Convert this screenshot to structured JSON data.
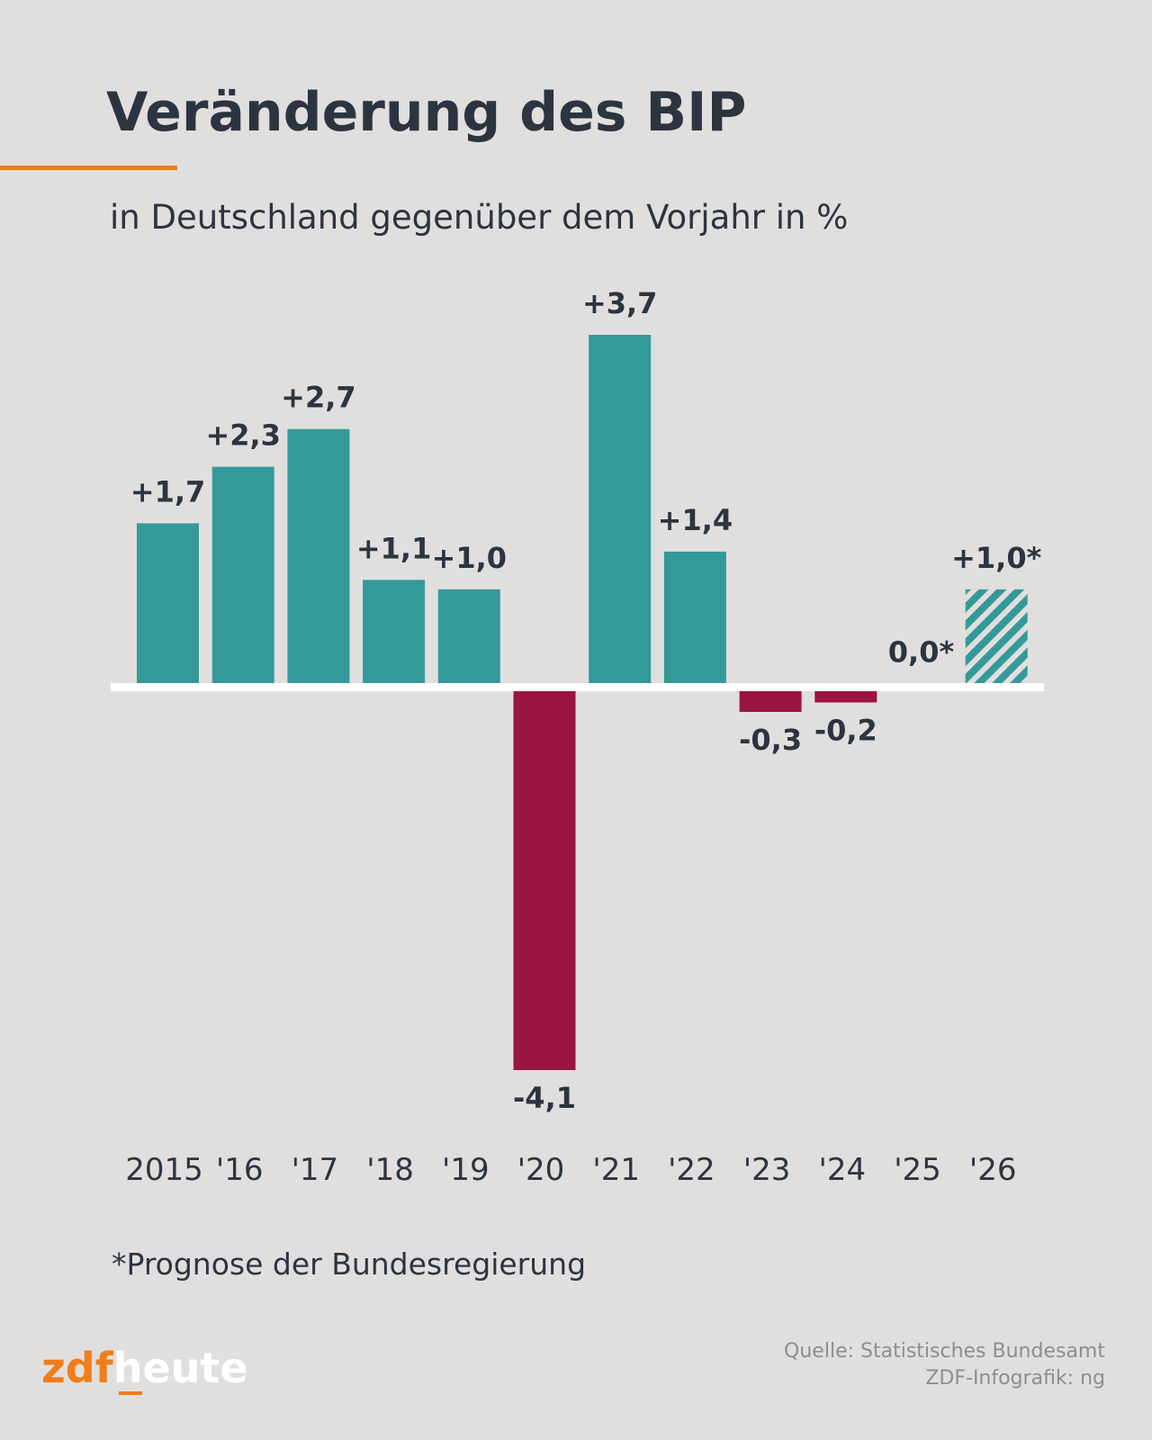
{
  "chart_data": {
    "type": "bar",
    "title": "Veränderung des BIP",
    "subtitle": "in Deutschland gegenüber dem Vorjahr in %",
    "categories": [
      "2015",
      "'16",
      "'17",
      "'18",
      "'19",
      "'20",
      "'21",
      "'22",
      "'23",
      "'24",
      "'25",
      "'26"
    ],
    "values": [
      1.7,
      2.3,
      2.7,
      1.1,
      1.0,
      -4.1,
      3.7,
      1.4,
      -0.3,
      -0.2,
      0.0,
      1.0
    ],
    "value_labels": [
      "+1,7",
      "+2,3",
      "+2,7",
      "+1,1",
      "+1,0",
      "-4,1",
      "+3,7",
      "+1,4",
      "-0,3",
      "-0,2",
      "0,0*",
      "+1,0*"
    ],
    "colors": [
      "#339a99",
      "#339a99",
      "#339a99",
      "#339a99",
      "#339a99",
      "#9a1443",
      "#339a99",
      "#339a99",
      "#9a1443",
      "#9a1443",
      "#339a99",
      "#339a99"
    ],
    "patterns": [
      "solid",
      "solid",
      "solid",
      "solid",
      "solid",
      "solid",
      "solid",
      "solid",
      "solid",
      "solid",
      "hatched",
      "hatched"
    ],
    "ylim": [
      -4.1,
      3.7
    ],
    "footnote": "*Prognose der Bundesregierung",
    "source": [
      "Quelle: Statistisches Bundesamt",
      "ZDF-Infografik: ng"
    ],
    "brand": [
      "zdf",
      "heute"
    ]
  }
}
